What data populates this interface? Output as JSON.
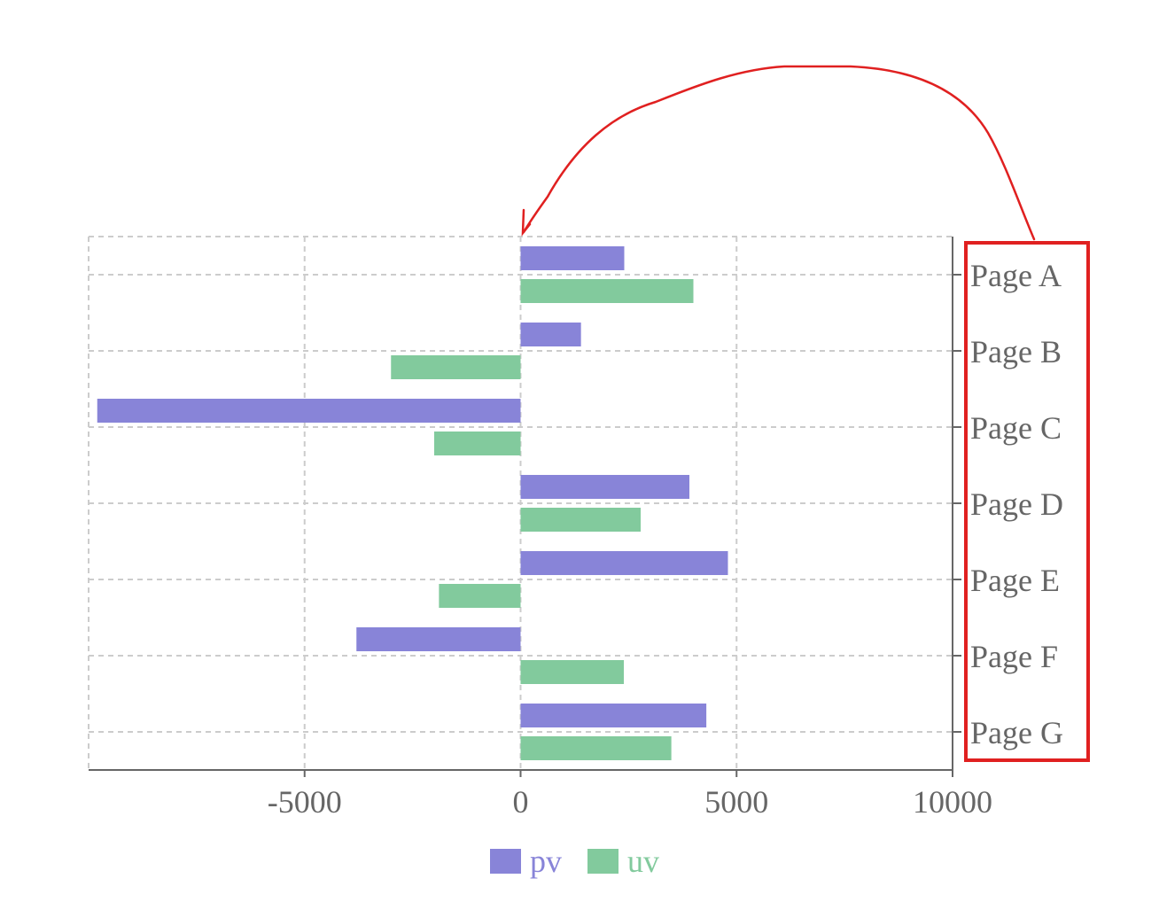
{
  "chart_data": {
    "type": "bar",
    "orientation": "horizontal",
    "categories": [
      "Page A",
      "Page B",
      "Page C",
      "Page D",
      "Page E",
      "Page F",
      "Page G"
    ],
    "series": [
      {
        "name": "pv",
        "color": "#8884d8",
        "values": [
          2400,
          1398,
          -9800,
          3908,
          4800,
          -3800,
          4300
        ]
      },
      {
        "name": "uv",
        "color": "#82ca9d",
        "values": [
          4000,
          -3000,
          -2000,
          2780,
          -1890,
          2390,
          3490
        ]
      }
    ],
    "xticks": [
      "-5000",
      "0",
      "5000",
      "10000"
    ],
    "xlim": [
      -10000,
      10000
    ],
    "y_axis_side": "right",
    "grid": true,
    "legend_position": "bottom"
  },
  "annotation": {
    "highlight_target": "y-axis category labels",
    "color": "#e02020"
  }
}
